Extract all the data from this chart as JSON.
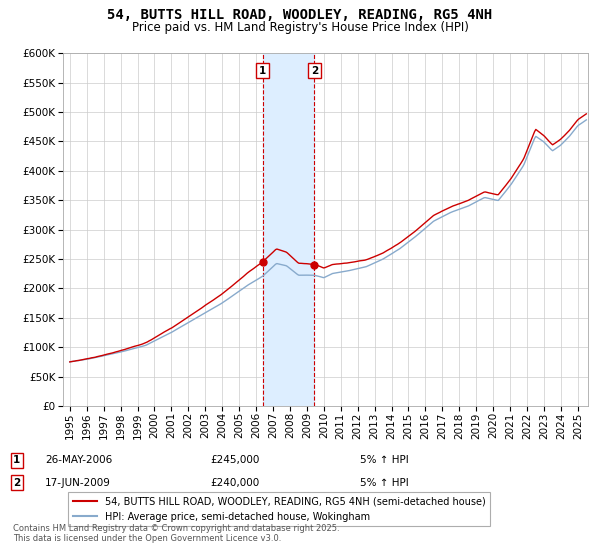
{
  "title": "54, BUTTS HILL ROAD, WOODLEY, READING, RG5 4NH",
  "subtitle": "Price paid vs. HM Land Registry's House Price Index (HPI)",
  "ylim": [
    0,
    600000
  ],
  "ytick_vals": [
    0,
    50000,
    100000,
    150000,
    200000,
    250000,
    300000,
    350000,
    400000,
    450000,
    500000,
    550000,
    600000
  ],
  "xlim_start": 1994.6,
  "xlim_end": 2025.6,
  "sale1_date": 2006.38,
  "sale1_price": 245000,
  "sale1_label": "1",
  "sale2_date": 2009.45,
  "sale2_price": 240000,
  "sale2_label": "2",
  "legend_line1": "54, BUTTS HILL ROAD, WOODLEY, READING, RG5 4NH (semi-detached house)",
  "legend_line2": "HPI: Average price, semi-detached house, Wokingham",
  "annotation1_date": "26-MAY-2006",
  "annotation1_price": "£245,000",
  "annotation1_hpi": "5% ↑ HPI",
  "annotation2_date": "17-JUN-2009",
  "annotation2_price": "£240,000",
  "annotation2_hpi": "5% ↑ HPI",
  "footnote": "Contains HM Land Registry data © Crown copyright and database right 2025.\nThis data is licensed under the Open Government Licence v3.0.",
  "line_color_red": "#cc0000",
  "line_color_blue": "#88aacc",
  "shade_color": "#ddeeff",
  "vline_color": "#cc0000",
  "background_color": "#ffffff",
  "grid_color": "#cccccc",
  "title_fontsize": 10,
  "subtitle_fontsize": 8.5,
  "tick_fontsize": 7.5
}
